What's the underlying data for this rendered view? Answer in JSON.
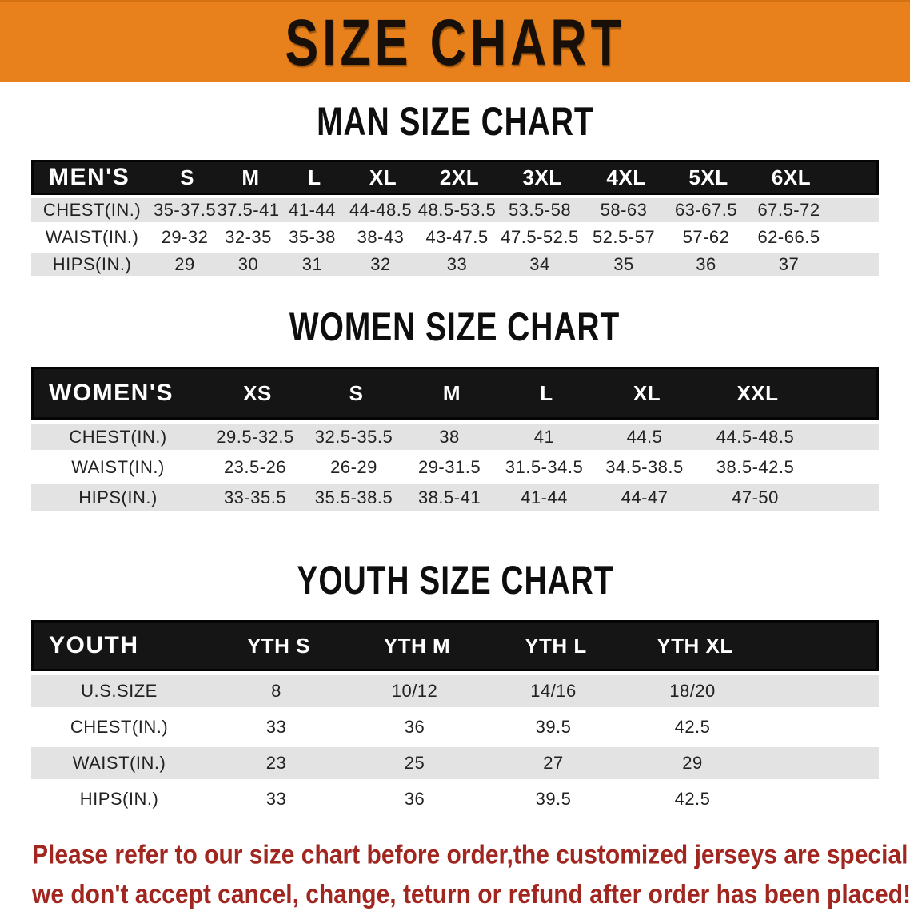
{
  "banner": {
    "title": "SIZE CHART"
  },
  "colors": {
    "banner_bg": "#e8811c",
    "band_bg": "#151515",
    "row_gray": "#e3e3e3",
    "text_dark": "#222222",
    "disclaimer_red": "#a1261f"
  },
  "sections": [
    {
      "heading": "MAN SIZE CHART",
      "table": {
        "header_label": "MEN'S",
        "columns": [
          "S",
          "M",
          "L",
          "XL",
          "2XL",
          "3XL",
          "4XL",
          "5XL",
          "6XL"
        ],
        "rows": [
          {
            "label": "CHEST(IN.)",
            "values": [
              "35-37.5",
              "37.5-41",
              "41-44",
              "44-48.5",
              "48.5-53.5",
              "53.5-58",
              "58-63",
              "63-67.5",
              "67.5-72"
            ]
          },
          {
            "label": "WAIST(IN.)",
            "values": [
              "29-32",
              "32-35",
              "35-38",
              "38-43",
              "43-47.5",
              "47.5-52.5",
              "52.5-57",
              "57-62",
              "62-66.5"
            ]
          },
          {
            "label": "HIPS(IN.)",
            "values": [
              "29",
              "30",
              "31",
              "32",
              "33",
              "34",
              "35",
              "36",
              "37"
            ]
          }
        ]
      }
    },
    {
      "heading": "WOMEN SIZE CHART",
      "table": {
        "header_label": "WOMEN'S",
        "columns": [
          "XS",
          "S",
          "M",
          "L",
          "XL",
          "XXL"
        ],
        "rows": [
          {
            "label": "CHEST(IN.)",
            "values": [
              "29.5-32.5",
              "32.5-35.5",
              "38",
              "41",
              "44.5",
              "44.5-48.5"
            ]
          },
          {
            "label": "WAIST(IN.)",
            "values": [
              "23.5-26",
              "26-29",
              "29-31.5",
              "31.5-34.5",
              "34.5-38.5",
              "38.5-42.5"
            ]
          },
          {
            "label": "HIPS(IN.)",
            "values": [
              "33-35.5",
              "35.5-38.5",
              "38.5-41",
              "41-44",
              "44-47",
              "47-50"
            ]
          }
        ]
      }
    },
    {
      "heading": "YOUTH SIZE CHART",
      "table": {
        "header_label": "YOUTH",
        "columns": [
          "YTH S",
          "YTH M",
          "YTH L",
          "YTH XL"
        ],
        "rows": [
          {
            "label": "U.S.SIZE",
            "values": [
              "8",
              "10/12",
              "14/16",
              "18/20"
            ]
          },
          {
            "label": "CHEST(IN.)",
            "values": [
              "33",
              "36",
              "39.5",
              "42.5"
            ]
          },
          {
            "label": "WAIST(IN.)",
            "values": [
              "23",
              "25",
              "27",
              "29"
            ]
          },
          {
            "label": "HIPS(IN.)",
            "values": [
              "33",
              "36",
              "39.5",
              "42.5"
            ]
          }
        ]
      }
    }
  ],
  "disclaimer": {
    "line1": "Please refer to our size chart before order,the customized jerseys are special products,",
    "line2": "we don't accept cancel, change, teturn or refund after order has been placed!"
  }
}
